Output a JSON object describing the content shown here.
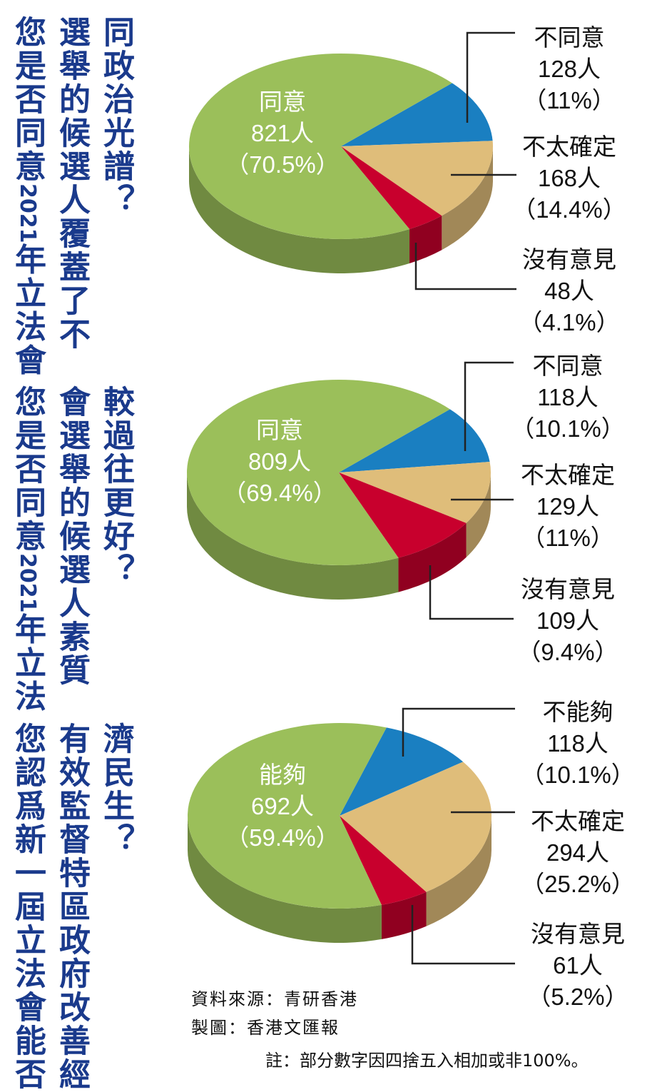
{
  "questions": [
    {
      "lines": [
        "您是否同意2021年立法會",
        "選舉的候選人覆蓋了不",
        "同政治光譜？"
      ]
    },
    {
      "lines": [
        "您是否同意2021年立法",
        "會選舉的候選人素質",
        "較過往更好？"
      ]
    },
    {
      "lines": [
        "您認爲新一屆立法會能否",
        "有效監督特區政府改善經",
        "濟民生？"
      ]
    }
  ],
  "chart_data": [
    {
      "type": "pie",
      "slices": [
        {
          "label": "同意",
          "count": "821人",
          "percent_text": "（70.5%）",
          "value": 70.5,
          "color": "#9bbf5a"
        },
        {
          "label": "不同意",
          "count": "128人",
          "percent_text": "（11%）",
          "value": 11.0,
          "color": "#1a7fc1"
        },
        {
          "label": "不太確定",
          "count": "168人",
          "percent_text": "（14.4%）",
          "value": 14.4,
          "color": "#dfbd7a"
        },
        {
          "label": "沒有意見",
          "count": "48人",
          "percent_text": "（4.1%）",
          "value": 4.1,
          "color": "#c8002d"
        }
      ]
    },
    {
      "type": "pie",
      "slices": [
        {
          "label": "同意",
          "count": "809人",
          "percent_text": "（69.4%）",
          "value": 69.4,
          "color": "#9bbf5a"
        },
        {
          "label": "不同意",
          "count": "118人",
          "percent_text": "（10.1%）",
          "value": 10.1,
          "color": "#1a7fc1"
        },
        {
          "label": "不太確定",
          "count": "129人",
          "percent_text": "（11%）",
          "value": 11.0,
          "color": "#dfbd7a"
        },
        {
          "label": "沒有意見",
          "count": "109人",
          "percent_text": "（9.4%）",
          "value": 9.4,
          "color": "#c8002d"
        }
      ]
    },
    {
      "type": "pie",
      "slices": [
        {
          "label": "能夠",
          "count": "692人",
          "percent_text": "（59.4%）",
          "value": 59.4,
          "color": "#9bbf5a"
        },
        {
          "label": "不能夠",
          "count": "118人",
          "percent_text": "（10.1%）",
          "value": 10.1,
          "color": "#1a7fc1"
        },
        {
          "label": "不太確定",
          "count": "294人",
          "percent_text": "（25.2%）",
          "value": 25.2,
          "color": "#dfbd7a"
        },
        {
          "label": "沒有意見",
          "count": "61人",
          "percent_text": "（5.2%）",
          "value": 5.2,
          "color": "#c8002d"
        }
      ]
    }
  ],
  "footer": {
    "source": "資料來源：青研香港",
    "credit": "製圖：香港文匯報",
    "note": "註：部分數字因四捨五入相加或非100%。"
  }
}
